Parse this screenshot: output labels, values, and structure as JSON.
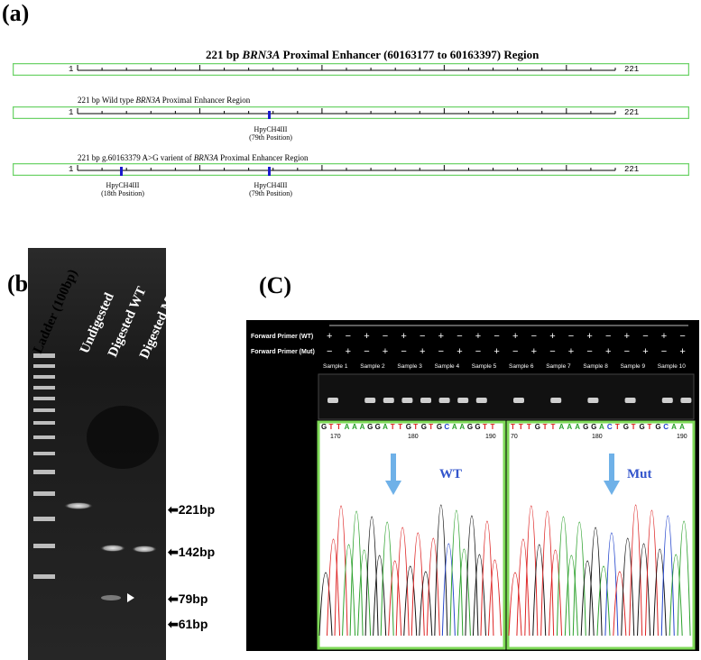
{
  "panel_a": {
    "label": "(a)",
    "title_bp": "221 bp ",
    "title_gene": "BRN3A",
    "title_rest": " Proximal Enhancer  (60163177 to 60163397) Region",
    "track1_start": "1",
    "track1_end": "221",
    "track2_title_pre": "221 bp Wild type ",
    "track2_title_gene": "BRN3A",
    "track2_title_post": " Proximal Enhancer Region",
    "track2_start": "1",
    "track2_end": "221",
    "track2_site_name": "HpyCH4III",
    "track2_site_pos": "(79th Position)",
    "track3_title_pre": "221 bp g.60163379 A>G varient of ",
    "track3_title_gene": "BRN3A",
    "track3_title_post": " Proximal Enhancer Region",
    "track3_start": "1",
    "track3_end": "221",
    "track3_site1_name": "HpyCH4III",
    "track3_site1_pos": "(18th Position)",
    "track3_site2_name": "HpyCH4III",
    "track3_site2_pos": "(79th Position)",
    "border_color": "#6fd36a",
    "site_color": "#1a1acc"
  },
  "panel_b": {
    "label": "(b)",
    "lanes": [
      "Ladder (100bp)",
      "Undigested",
      "Digested WT",
      "Digested Mut"
    ],
    "markers": [
      "221bp",
      "142bp",
      "79bp",
      "61bp"
    ]
  },
  "panel_c": {
    "label": "(C)",
    "primer_wt": "Forward Primer (WT)",
    "primer_mut": "Forward Primer (Mut)",
    "samples": [
      "Sample 1",
      "Sample 2",
      "Sample 3",
      "Sample 4",
      "Sample 5",
      "Sample 6",
      "Sample 7",
      "Sample 8",
      "Sample 9",
      "Sample 10"
    ],
    "wt_signs": [
      "+",
      "−",
      "+",
      "−",
      "+",
      "−",
      "+",
      "−",
      "+",
      "−",
      "+",
      "−",
      "+",
      "−",
      "+",
      "−",
      "+",
      "−",
      "+",
      "−"
    ],
    "mut_signs": [
      "−",
      "+",
      "−",
      "+",
      "−",
      "+",
      "−",
      "+",
      "−",
      "+",
      "−",
      "+",
      "−",
      "+",
      "−",
      "+",
      "−",
      "+",
      "−",
      "+"
    ],
    "left_seq": [
      "G",
      "T",
      "T",
      "A",
      "A",
      "A",
      "G",
      "G",
      "A",
      "T",
      "T",
      "G",
      "T",
      "G",
      "T",
      "G",
      "C",
      "A",
      "A",
      "G",
      "G",
      "T",
      "T"
    ],
    "left_ticks": [
      "170",
      "180",
      "190"
    ],
    "left_label": "WT",
    "right_seq": [
      "T",
      "T",
      "T",
      "G",
      "T",
      "T",
      "A",
      "A",
      "A",
      "G",
      "G",
      "A",
      "C",
      "T",
      "G",
      "T",
      "G",
      "T",
      "G",
      "C",
      "A",
      "A"
    ],
    "right_ticks": [
      "70",
      "180",
      "190"
    ],
    "right_label": "Mut",
    "box_color": "#7ed957",
    "arrow_color": "#6fb1e8"
  }
}
